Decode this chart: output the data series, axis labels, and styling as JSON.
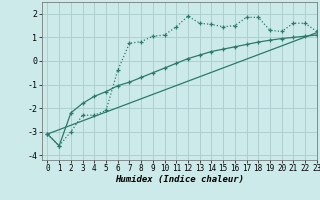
{
  "xlabel": "Humidex (Indice chaleur)",
  "bg_color": "#cceaea",
  "grid_color": "#aacccc",
  "line_color": "#2a7a6a",
  "xlim": [
    -0.5,
    23
  ],
  "ylim": [
    -4.2,
    2.5
  ],
  "yticks": [
    -4,
    -3,
    -2,
    -1,
    0,
    1,
    2
  ],
  "xticks": [
    0,
    1,
    2,
    3,
    4,
    5,
    6,
    7,
    8,
    9,
    10,
    11,
    12,
    13,
    14,
    15,
    16,
    17,
    18,
    19,
    20,
    21,
    22,
    23
  ],
  "series1_x": [
    0,
    1,
    2,
    3,
    4,
    5,
    6,
    7,
    8,
    9,
    10,
    11,
    12,
    13,
    14,
    15,
    16,
    17,
    18,
    19,
    20,
    21,
    22,
    23
  ],
  "series1_y": [
    -3.1,
    -3.6,
    -3.0,
    -2.3,
    -2.3,
    -2.1,
    -0.4,
    0.75,
    0.82,
    1.05,
    1.1,
    1.45,
    1.9,
    1.6,
    1.55,
    1.45,
    1.5,
    1.85,
    1.85,
    1.3,
    1.25,
    1.6,
    1.6,
    1.25
  ],
  "series2_x": [
    0,
    1,
    2,
    3,
    4,
    5,
    6,
    7,
    8,
    9,
    10,
    11,
    12,
    13,
    14,
    15,
    16,
    17,
    18,
    19,
    20,
    21,
    22,
    23
  ],
  "series2_y": [
    -3.1,
    -3.6,
    -2.2,
    -1.8,
    -1.5,
    -1.3,
    -1.05,
    -0.9,
    -0.7,
    -0.5,
    -0.3,
    -0.1,
    0.1,
    0.25,
    0.4,
    0.5,
    0.6,
    0.7,
    0.8,
    0.88,
    0.95,
    1.0,
    1.05,
    1.1
  ],
  "series3_x": [
    0,
    23
  ],
  "series3_y": [
    -3.1,
    1.2
  ]
}
